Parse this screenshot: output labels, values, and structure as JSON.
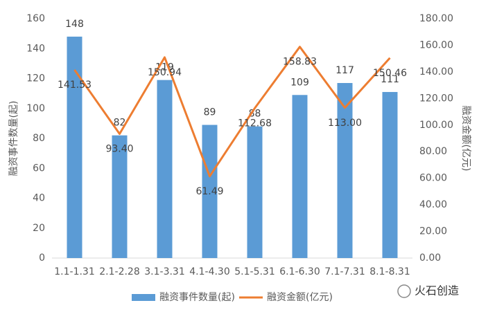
{
  "chart_data": {
    "type": "bar_line",
    "categories": [
      "1.1-1.31",
      "2.1-2.28",
      "3.1-3.31",
      "4.1-4.30",
      "5.1-5.31",
      "6.1-6.30",
      "7.1-7.31",
      "8.1-8.31"
    ],
    "series": [
      {
        "name": "融资事件数量(起)",
        "type": "bar",
        "color": "#5b9bd5",
        "axis": "y",
        "values": [
          148,
          82,
          119,
          89,
          88,
          109,
          117,
          111
        ]
      },
      {
        "name": "融资金额(亿元)",
        "type": "line",
        "color": "#ed7d31",
        "axis": "y2",
        "values": [
          141.53,
          93.4,
          150.94,
          61.49,
          112.68,
          158.83,
          113.0,
          150.46
        ],
        "value_labels": [
          "141.53",
          "93.40",
          "150.94",
          "61.49",
          "112.68",
          "158.83",
          "113.00",
          "150.46"
        ]
      }
    ],
    "y_label": "融资事件数量(起)",
    "y2_label": "融资金额(亿元)",
    "ylim": [
      0,
      160
    ],
    "yticks": [
      0,
      20,
      40,
      60,
      80,
      100,
      120,
      140,
      160
    ],
    "y2lim": [
      0,
      180
    ],
    "y2ticks": [
      {
        "value": 0,
        "label": "0.00"
      },
      {
        "value": 20,
        "label": "20.00"
      },
      {
        "value": 40,
        "label": "40.00"
      },
      {
        "value": 60,
        "label": "60.00"
      },
      {
        "value": 80,
        "label": "80.00"
      },
      {
        "value": 100,
        "label": "100.00"
      },
      {
        "value": 120,
        "label": "120.00"
      },
      {
        "value": 140,
        "label": "140.00"
      },
      {
        "value": 160,
        "label": "160.00"
      },
      {
        "value": 180,
        "label": "180.00"
      }
    ],
    "grid": false,
    "legend": "bottom",
    "logo": "火石创造"
  }
}
